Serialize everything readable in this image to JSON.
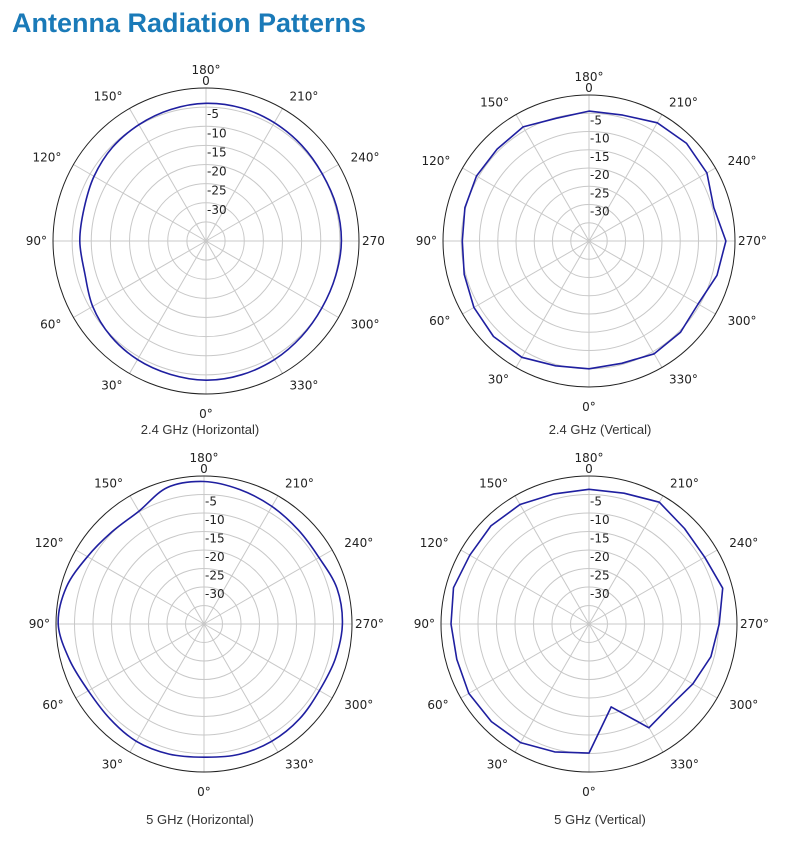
{
  "page": {
    "title": "Antenna Radiation Patterns"
  },
  "colors": {
    "title": "#1a7ab8",
    "trace": "#1f1fa0",
    "grid": "#c8c8c8",
    "outer_ring": "#222222"
  },
  "chart_data": [
    {
      "type": "polar-line",
      "caption": "2.4 GHz (Horizontal)",
      "rlim": [
        -40,
        0
      ],
      "r_ticks": [
        "0",
        "-5",
        "-10",
        "-15",
        "-20",
        "-25",
        "-30"
      ],
      "theta_labels": [
        "0°",
        "30°",
        "60°",
        "90°",
        "120°",
        "150°",
        "180°",
        "210°",
        "240°",
        "270",
        "300°",
        "330°"
      ],
      "theta_direction": "clockwise",
      "theta_zero": "bottom",
      "smooth": true,
      "series": [
        {
          "name": "2.4 GHz (Horizontal)",
          "theta": [
            0,
            15,
            30,
            45,
            60,
            75,
            90,
            105,
            120,
            135,
            150,
            165,
            180,
            195,
            210,
            225,
            240,
            255,
            270,
            285,
            300,
            315,
            330,
            345
          ],
          "r": [
            -3.6,
            -3.9,
            -4.2,
            -4.8,
            -5.8,
            -7.2,
            -7.0,
            -7.0,
            -6.2,
            -5.4,
            -4.9,
            -4.4,
            -4.0,
            -4.0,
            -4.3,
            -4.6,
            -4.9,
            -4.7,
            -4.6,
            -4.9,
            -5.0,
            -4.7,
            -4.2,
            -3.8
          ]
        }
      ]
    },
    {
      "type": "polar-line",
      "caption": "2.4 GHz (Vertical)",
      "rlim": [
        -40,
        0
      ],
      "r_ticks": [
        "0",
        "-5",
        "-10",
        "-15",
        "-20",
        "-25",
        "-30"
      ],
      "theta_labels": [
        "0°",
        "30°",
        "60°",
        "90°",
        "120°",
        "150°",
        "180°",
        "210°",
        "240°",
        "270°",
        "300°",
        "330°"
      ],
      "theta_direction": "clockwise",
      "theta_zero": "bottom",
      "smooth": false,
      "series": [
        {
          "name": "2.4 GHz (Vertical)",
          "theta": [
            0,
            15,
            30,
            45,
            60,
            75,
            90,
            105,
            120,
            135,
            150,
            165,
            180,
            195,
            210,
            225,
            240,
            255,
            270,
            285,
            300,
            315,
            330,
            345
          ],
          "r": [
            -5.0,
            -4.6,
            -3.2,
            -3.0,
            -3.6,
            -4.6,
            -5.3,
            -4.8,
            -4.4,
            -4.4,
            -3.9,
            -5.2,
            -4.4,
            -4.3,
            -2.6,
            -2.2,
            -2.7,
            -4.6,
            -2.5,
            -3.7,
            -5.5,
            -4.6,
            -4.3,
            -5.3
          ]
        }
      ]
    },
    {
      "type": "polar-line",
      "caption": "5 GHz (Horizontal)",
      "rlim": [
        -40,
        0
      ],
      "r_ticks": [
        "0",
        "-5",
        "-10",
        "-15",
        "-20",
        "-25",
        "-30"
      ],
      "theta_labels": [
        "0°",
        "30°",
        "60°",
        "90°",
        "120°",
        "150°",
        "180°",
        "210°",
        "240°",
        "270°",
        "300°",
        "330°"
      ],
      "theta_direction": "clockwise",
      "theta_zero": "bottom",
      "smooth": true,
      "series": [
        {
          "name": "5 GHz (Horizontal)",
          "theta": [
            0,
            15,
            30,
            45,
            60,
            75,
            90,
            105,
            120,
            135,
            150,
            165,
            180,
            195,
            210,
            225,
            240,
            255,
            270,
            285,
            300,
            315,
            330,
            345
          ],
          "r": [
            -4.0,
            -3.6,
            -3.4,
            -3.9,
            -3.9,
            -2.4,
            -0.6,
            -1.5,
            -3.6,
            -4.8,
            -4.8,
            -1.8,
            -1.5,
            -2.4,
            -3.3,
            -4.0,
            -4.1,
            -2.8,
            -2.6,
            -3.3,
            -4.0,
            -3.6,
            -3.4,
            -3.5
          ]
        }
      ]
    },
    {
      "type": "polar-line",
      "caption": "5 GHz (Vertical)",
      "rlim": [
        -40,
        0
      ],
      "r_ticks": [
        "0",
        "-5",
        "-10",
        "-15",
        "-20",
        "-25",
        "-30"
      ],
      "theta_labels": [
        "0°",
        "30°",
        "60°",
        "90°",
        "120°",
        "150°",
        "180°",
        "210°",
        "240°",
        "270°",
        "300°",
        "330°"
      ],
      "theta_direction": "clockwise",
      "theta_zero": "bottom",
      "smooth": false,
      "series": [
        {
          "name": "5 GHz (Vertical)",
          "theta": [
            0,
            15,
            30,
            45,
            60,
            75,
            90,
            105,
            120,
            135,
            150,
            165,
            180,
            195,
            210,
            225,
            240,
            255,
            270,
            285,
            300,
            315,
            330,
            345
          ],
          "r": [
            -5.1,
            -4.2,
            -3.0,
            -2.7,
            -2.5,
            -3.0,
            -2.7,
            -2.1,
            -2.8,
            -2.5,
            -2.7,
            -3.6,
            -3.6,
            -3.4,
            -2.0,
            -3.5,
            -3.9,
            -2.6,
            -4.8,
            -5.9,
            -7.6,
            -8.8,
            -7.6,
            -16.8
          ]
        }
      ]
    }
  ]
}
